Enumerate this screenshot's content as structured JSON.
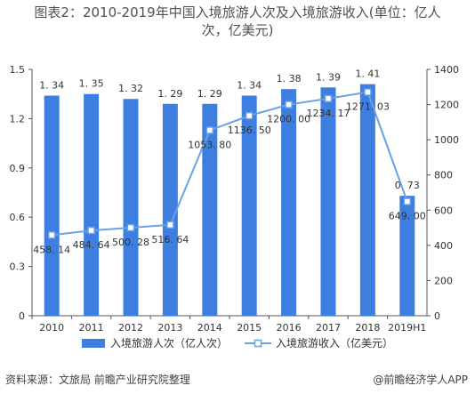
{
  "title_line1": "图表2：2010-2019年中国入境旅游人次及入境旅游收入(单位：亿人",
  "title_line2": "次，亿美元)",
  "source": "资料来源：文旅局 前瞻产业研究院整理",
  "brand": "@前瞻经济学人APP",
  "colors": {
    "bar": "#3d7fe0",
    "line": "#6aa0e6",
    "marker_fill": "#ffffff",
    "axis": "#555555",
    "text": "#333333"
  },
  "chart_data": {
    "type": "bar",
    "categories": [
      "2010",
      "2011",
      "2012",
      "2013",
      "2014",
      "2015",
      "2016",
      "2017",
      "2018",
      "2019H1"
    ],
    "series": [
      {
        "name": "入境旅游人次（亿人次）",
        "type": "bar",
        "axis": "left",
        "values": [
          1.34,
          1.35,
          1.32,
          1.29,
          1.29,
          1.34,
          1.38,
          1.39,
          1.41,
          0.73
        ],
        "labels": [
          "1. 34",
          "1. 35",
          "1. 32",
          "1. 29",
          "1. 29",
          "1. 34",
          "1. 38",
          "1. 39",
          "1. 41",
          "0. 73"
        ]
      },
      {
        "name": "入境旅游收入（亿美元）",
        "type": "line",
        "axis": "right",
        "values": [
          458.14,
          484.64,
          500.28,
          516.64,
          1053.8,
          1136.5,
          1200.0,
          1234.17,
          1271.03,
          649.0
        ],
        "labels": [
          "458. 14",
          "484. 64",
          "500. 28",
          "516. 64",
          "1053. 80",
          "1136. 50",
          "1200. 00",
          "1234. 17",
          "1271. 03",
          "649. 00"
        ]
      }
    ],
    "y_left": {
      "min": 0,
      "max": 1.5,
      "ticks": [
        "0",
        "0.3",
        "0.6",
        "0.9",
        "1.2",
        "1.5"
      ]
    },
    "y_right": {
      "min": 0,
      "max": 1400,
      "ticks": [
        "0",
        "200",
        "400",
        "600",
        "800",
        "1000",
        "1200",
        "1400"
      ]
    },
    "legend_position": "bottom"
  }
}
